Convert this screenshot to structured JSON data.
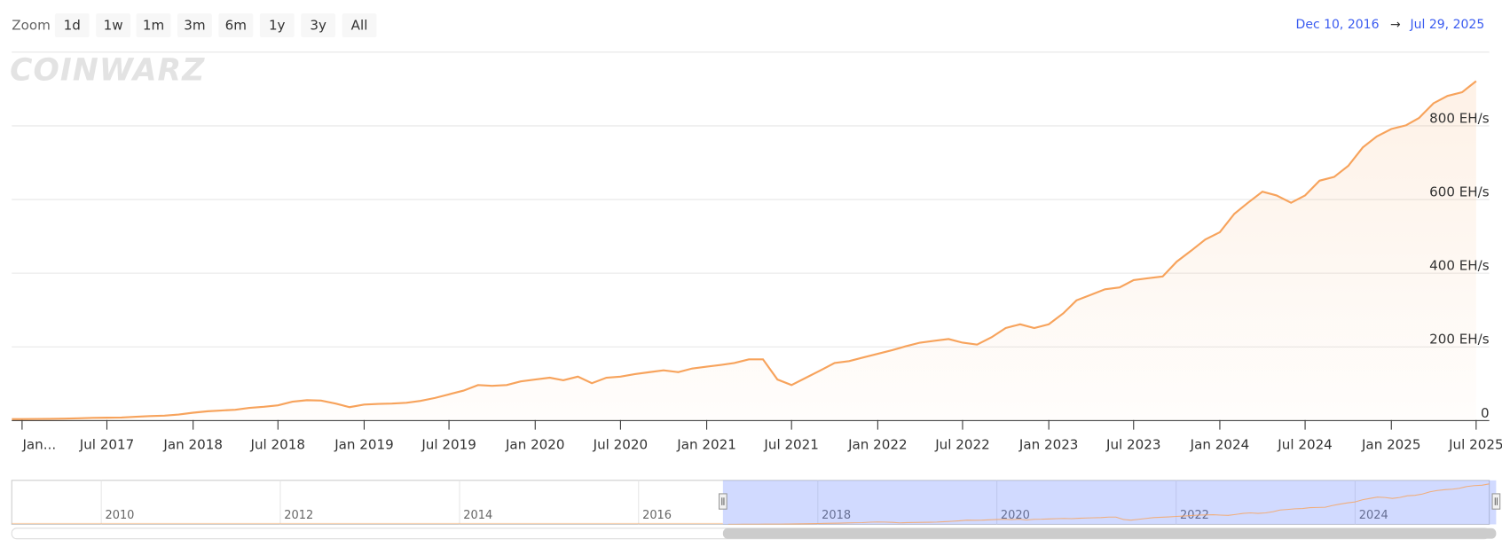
{
  "zoom_label": "Zoom",
  "zoom_buttons": [
    "1d",
    "1w",
    "1m",
    "3m",
    "6m",
    "1y",
    "3y",
    "All"
  ],
  "range": {
    "from": "Dec 10, 2016",
    "arrow": "→",
    "to": "Jul 29, 2025"
  },
  "watermark": "COINWARZ",
  "chart_data": {
    "type": "area",
    "color": "#f7a35c",
    "x": [
      "2017-01",
      "2017-02",
      "2017-03",
      "2017-04",
      "2017-05",
      "2017-06",
      "2017-07",
      "2017-08",
      "2017-09",
      "2017-10",
      "2017-11",
      "2017-12",
      "2018-01",
      "2018-02",
      "2018-03",
      "2018-04",
      "2018-05",
      "2018-06",
      "2018-07",
      "2018-08",
      "2018-09",
      "2018-10",
      "2018-11",
      "2018-12",
      "2019-01",
      "2019-02",
      "2019-03",
      "2019-04",
      "2019-05",
      "2019-06",
      "2019-07",
      "2019-08",
      "2019-09",
      "2019-10",
      "2019-11",
      "2019-12",
      "2020-01",
      "2020-02",
      "2020-03",
      "2020-04",
      "2020-05",
      "2020-06",
      "2020-07",
      "2020-08",
      "2020-09",
      "2020-10",
      "2020-11",
      "2020-12",
      "2021-01",
      "2021-02",
      "2021-03",
      "2021-04",
      "2021-05",
      "2021-06",
      "2021-07",
      "2021-08",
      "2021-09",
      "2021-10",
      "2021-11",
      "2021-12",
      "2022-01",
      "2022-02",
      "2022-03",
      "2022-04",
      "2022-05",
      "2022-06",
      "2022-07",
      "2022-08",
      "2022-09",
      "2022-10",
      "2022-11",
      "2022-12",
      "2023-01",
      "2023-02",
      "2023-03",
      "2023-04",
      "2023-05",
      "2023-06",
      "2023-07",
      "2023-08",
      "2023-09",
      "2023-10",
      "2023-11",
      "2023-12",
      "2024-01",
      "2024-02",
      "2024-03",
      "2024-04",
      "2024-05",
      "2024-06",
      "2024-07",
      "2024-08",
      "2024-09",
      "2024-10",
      "2024-11",
      "2024-12",
      "2025-01",
      "2025-02",
      "2025-03",
      "2025-04",
      "2025-05",
      "2025-06",
      "2025-07"
    ],
    "values": [
      2.5,
      3,
      3.5,
      4,
      5,
      6,
      6.5,
      7,
      9,
      11,
      12,
      15,
      20,
      24,
      26,
      28,
      33,
      36,
      40,
      50,
      54,
      53,
      45,
      35,
      42,
      44,
      45,
      47,
      52,
      60,
      70,
      80,
      95,
      93,
      95,
      105,
      110,
      115,
      108,
      118,
      100,
      115,
      118,
      125,
      130,
      135,
      130,
      140,
      145,
      150,
      155,
      165,
      165,
      110,
      95,
      115,
      135,
      155,
      160,
      170,
      180,
      190,
      200,
      210,
      215,
      220,
      210,
      205,
      225,
      250,
      260,
      250,
      260,
      290,
      325,
      340,
      355,
      360,
      380,
      385,
      390,
      430,
      460,
      490,
      510,
      560,
      590,
      620,
      610,
      590,
      610,
      650,
      660,
      690,
      740,
      770,
      790,
      800,
      820,
      860,
      880,
      890,
      920
    ],
    "xlim": [
      "2016-12-10",
      "2025-07-29"
    ],
    "xticks": [
      {
        "value": "2017-01",
        "label": "Jan..."
      },
      {
        "value": "2017-07",
        "label": "Jul 2017"
      },
      {
        "value": "2018-01",
        "label": "Jan 2018"
      },
      {
        "value": "2018-07",
        "label": "Jul 2018"
      },
      {
        "value": "2019-01",
        "label": "Jan 2019"
      },
      {
        "value": "2019-07",
        "label": "Jul 2019"
      },
      {
        "value": "2020-01",
        "label": "Jan 2020"
      },
      {
        "value": "2020-07",
        "label": "Jul 2020"
      },
      {
        "value": "2021-01",
        "label": "Jan 2021"
      },
      {
        "value": "2021-07",
        "label": "Jul 2021"
      },
      {
        "value": "2022-01",
        "label": "Jan 2022"
      },
      {
        "value": "2022-07",
        "label": "Jul 2022"
      },
      {
        "value": "2023-01",
        "label": "Jan 2023"
      },
      {
        "value": "2023-07",
        "label": "Jul 2023"
      },
      {
        "value": "2024-01",
        "label": "Jan 2024"
      },
      {
        "value": "2024-07",
        "label": "Jul 2024"
      },
      {
        "value": "2025-01",
        "label": "Jan 2025"
      },
      {
        "value": "2025-07",
        "label": "Jul 2025"
      }
    ],
    "ylim": [
      0,
      1000
    ],
    "yticks": [
      0,
      {
        "value": 200,
        "label": "200 EH/s"
      },
      {
        "value": 400,
        "label": "400 EH/s"
      },
      {
        "value": 600,
        "label": "600 EH/s"
      },
      {
        "value": 800,
        "label": "800 EH/s"
      }
    ],
    "grid": true,
    "navigator": {
      "xlim": [
        "2009-01",
        "2025-07"
      ],
      "xticks": [
        {
          "value": "2010-01",
          "label": "2010"
        },
        {
          "value": "2012-01",
          "label": "2012"
        },
        {
          "value": "2014-01",
          "label": "2014"
        },
        {
          "value": "2016-01",
          "label": "2016"
        },
        {
          "value": "2018-01",
          "label": "2018"
        },
        {
          "value": "2020-01",
          "label": "2020"
        },
        {
          "value": "2022-01",
          "label": "2022"
        },
        {
          "value": "2024-01",
          "label": "2024"
        }
      ]
    }
  }
}
